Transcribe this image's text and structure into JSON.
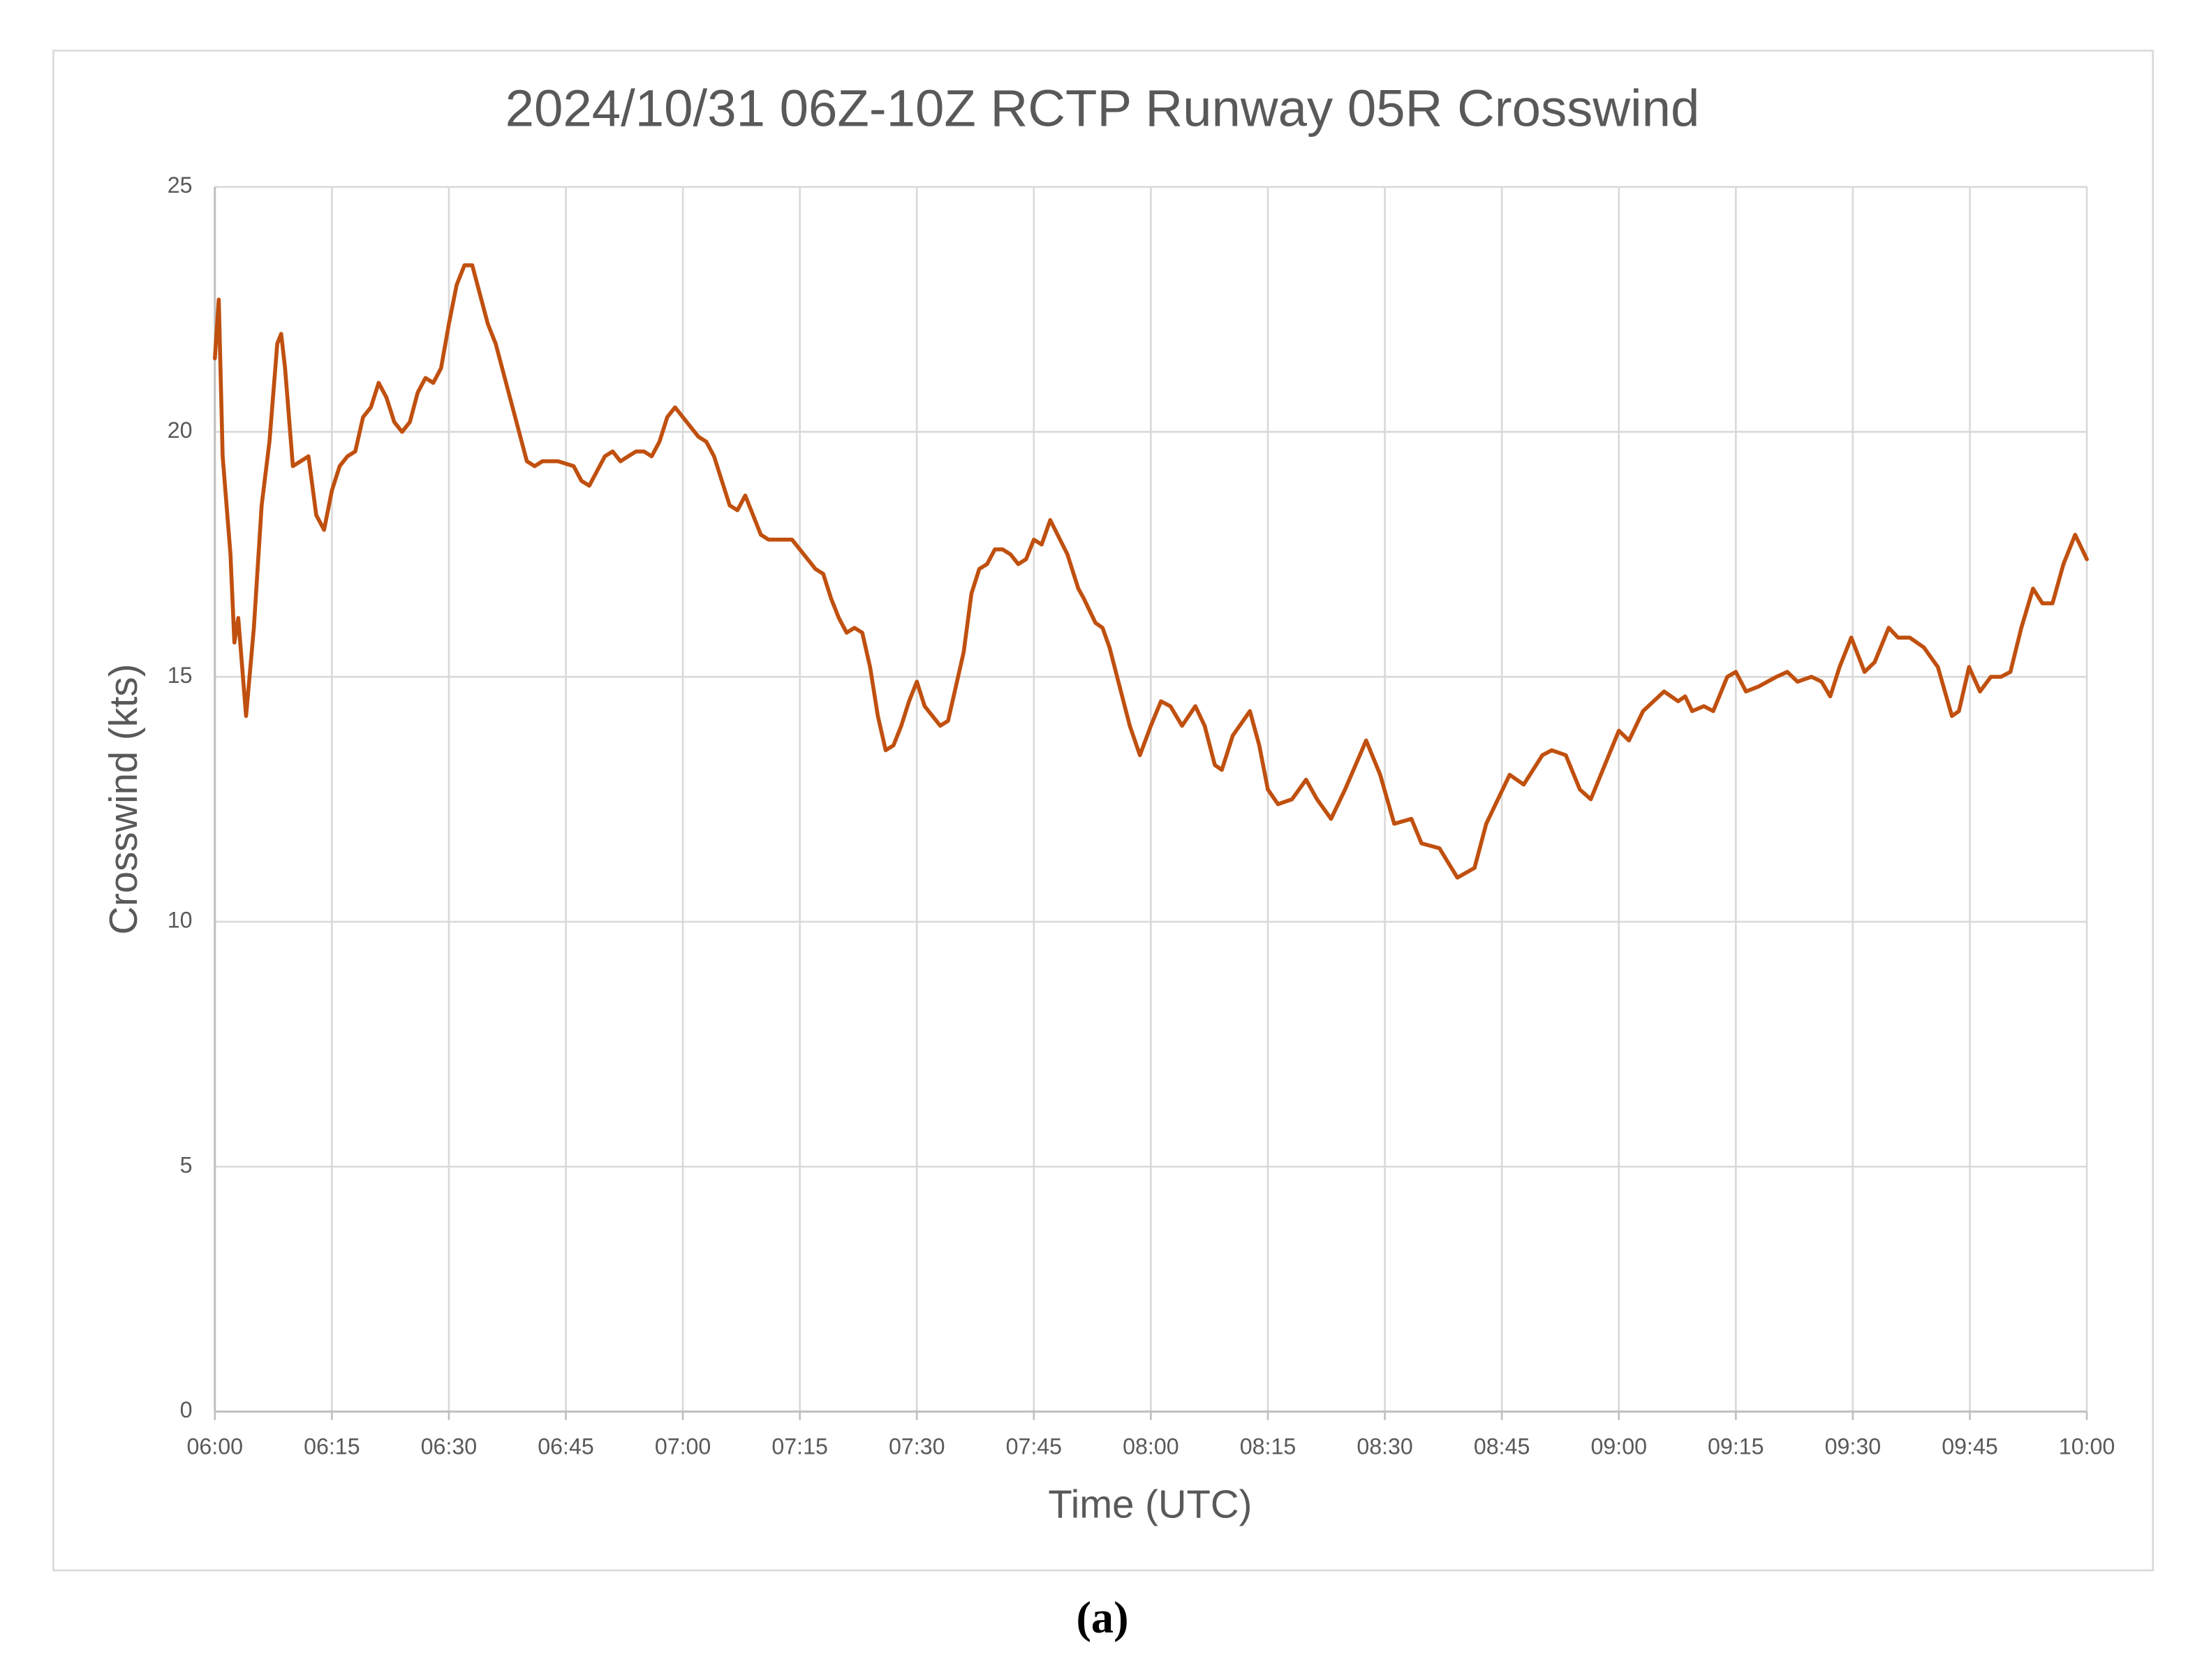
{
  "chart_data": {
    "type": "line",
    "title": "2024/10/31 06Z-10Z RCTP Runway 05R Crosswind",
    "x_label": "Time (UTC)",
    "y_label": "Crosswind (kts)",
    "caption": "(a)",
    "color": "#c0500f",
    "grid": true,
    "xlim": [
      0,
      240
    ],
    "xticks": [
      {
        "value": 0,
        "label": "06:00"
      },
      {
        "value": 15,
        "label": "06:15"
      },
      {
        "value": 30,
        "label": "06:30"
      },
      {
        "value": 45,
        "label": "06:45"
      },
      {
        "value": 60,
        "label": "07:00"
      },
      {
        "value": 75,
        "label": "07:15"
      },
      {
        "value": 90,
        "label": "07:30"
      },
      {
        "value": 105,
        "label": "07:45"
      },
      {
        "value": 120,
        "label": "08:00"
      },
      {
        "value": 135,
        "label": "08:15"
      },
      {
        "value": 150,
        "label": "08:30"
      },
      {
        "value": 165,
        "label": "08:45"
      },
      {
        "value": 180,
        "label": "09:00"
      },
      {
        "value": 195,
        "label": "09:15"
      },
      {
        "value": 210,
        "label": "09:30"
      },
      {
        "value": 225,
        "label": "09:45"
      },
      {
        "value": 240,
        "label": "10:00"
      }
    ],
    "ylim": [
      0,
      25
    ],
    "yticks": [
      0,
      5,
      10,
      15,
      20,
      25
    ],
    "x": [
      0,
      0.5,
      1,
      2,
      2.5,
      3,
      3.5,
      4,
      5,
      6,
      7,
      8,
      8.5,
      9,
      10,
      11,
      12,
      13,
      14,
      15,
      16,
      17,
      18,
      19,
      20,
      21,
      22,
      23,
      24,
      25,
      26,
      27,
      28,
      29,
      30,
      31,
      32,
      33,
      34,
      35,
      36,
      37,
      38,
      39,
      40,
      41,
      42,
      44,
      46,
      47,
      48,
      49,
      50,
      51,
      52,
      53,
      54,
      55,
      56,
      57,
      58,
      59,
      60,
      61,
      62,
      63,
      64,
      65,
      66,
      67,
      68,
      69,
      70,
      71,
      72,
      74,
      75,
      76,
      77,
      78,
      79,
      80,
      81,
      82,
      83,
      84,
      85,
      86,
      87,
      88,
      89,
      90,
      91,
      92,
      93,
      94,
      95,
      96,
      97,
      98,
      99,
      100,
      101,
      102,
      103,
      104,
      105,
      106,
      107.1,
      109.3,
      110.7,
      111.4,
      112.9,
      113.8,
      114.7,
      116,
      117.3,
      118.6,
      120,
      121.3,
      122.5,
      124,
      125.7,
      126.9,
      128.2,
      129.1,
      130.5,
      132.7,
      133.9,
      135,
      136.3,
      138.1,
      139.9,
      141.3,
      143.1,
      144.9,
      147.6,
      149.4,
      151.2,
      153.4,
      154.7,
      157,
      159.3,
      161.5,
      163,
      164.2,
      166,
      167.8,
      170.2,
      171.4,
      173.2,
      175,
      176.4,
      178.2,
      180,
      181.3,
      183.1,
      185.8,
      187.6,
      188.5,
      189.4,
      190.9,
      192.1,
      193.9,
      195,
      196.3,
      197.9,
      200.2,
      201.6,
      202.9,
      204.7,
      206,
      207.1,
      208.3,
      209.8,
      211.5,
      212.8,
      214.6,
      215.8,
      217.3,
      219.1,
      220.9,
      222.7,
      223.6,
      224.9,
      226.3,
      227.7,
      229,
      230.2,
      231.6,
      233.1,
      234.3,
      235.6,
      237,
      238.5,
      240
    ],
    "values": [
      21.5,
      22.7,
      19.5,
      17.5,
      15.7,
      16.2,
      15.2,
      14.2,
      16,
      18.5,
      19.8,
      21.8,
      22,
      21.3,
      19.3,
      19.4,
      19.5,
      18.3,
      18,
      18.8,
      19.3,
      19.5,
      19.6,
      20.3,
      20.5,
      21,
      20.7,
      20.2,
      20,
      20.2,
      20.8,
      21.1,
      21,
      21.3,
      22.2,
      23,
      23.4,
      23.4,
      22.8,
      22.2,
      21.8,
      21.2,
      20.6,
      20,
      19.4,
      19.3,
      19.4,
      19.4,
      19.3,
      19,
      18.9,
      19.2,
      19.5,
      19.6,
      19.4,
      19.5,
      19.6,
      19.6,
      19.5,
      19.8,
      20.3,
      20.5,
      20.3,
      20.1,
      19.9,
      19.8,
      19.5,
      19,
      18.5,
      18.4,
      18.7,
      18.3,
      17.9,
      17.8,
      17.8,
      17.8,
      17.6,
      17.4,
      17.2,
      17.1,
      16.6,
      16.2,
      15.9,
      16,
      15.9,
      15.2,
      14.2,
      13.5,
      13.6,
      14,
      14.5,
      14.9,
      14.4,
      14.2,
      14,
      14.1,
      14.8,
      15.5,
      16.7,
      17.2,
      17.3,
      17.6,
      17.6,
      17.5,
      17.3,
      17.4,
      17.8,
      17.7,
      18.2,
      17.5,
      16.8,
      16.6,
      16.1,
      16,
      15.6,
      14.8,
      14,
      13.4,
      14,
      14.5,
      14.4,
      14,
      14.4,
      14,
      13.2,
      13.1,
      13.8,
      14.3,
      13.6,
      12.7,
      12.4,
      12.5,
      12.9,
      12.5,
      12.1,
      12.7,
      13.7,
      13,
      12,
      12.1,
      11.6,
      11.5,
      10.9,
      11.1,
      12,
      12.4,
      13,
      12.8,
      13.4,
      13.5,
      13.4,
      12.7,
      12.5,
      13.2,
      13.9,
      13.7,
      14.3,
      14.7,
      14.5,
      14.6,
      14.3,
      14.4,
      14.3,
      15,
      15.1,
      14.7,
      14.8,
      15,
      15.1,
      14.9,
      15,
      14.9,
      14.6,
      15.2,
      15.8,
      15.1,
      15.3,
      16,
      15.8,
      15.8,
      15.6,
      15.2,
      14.2,
      14.3,
      15.2,
      14.7,
      15,
      15,
      15.1,
      16,
      16.8,
      16.5,
      16.5,
      17.3,
      17.9,
      17.4
    ]
  }
}
